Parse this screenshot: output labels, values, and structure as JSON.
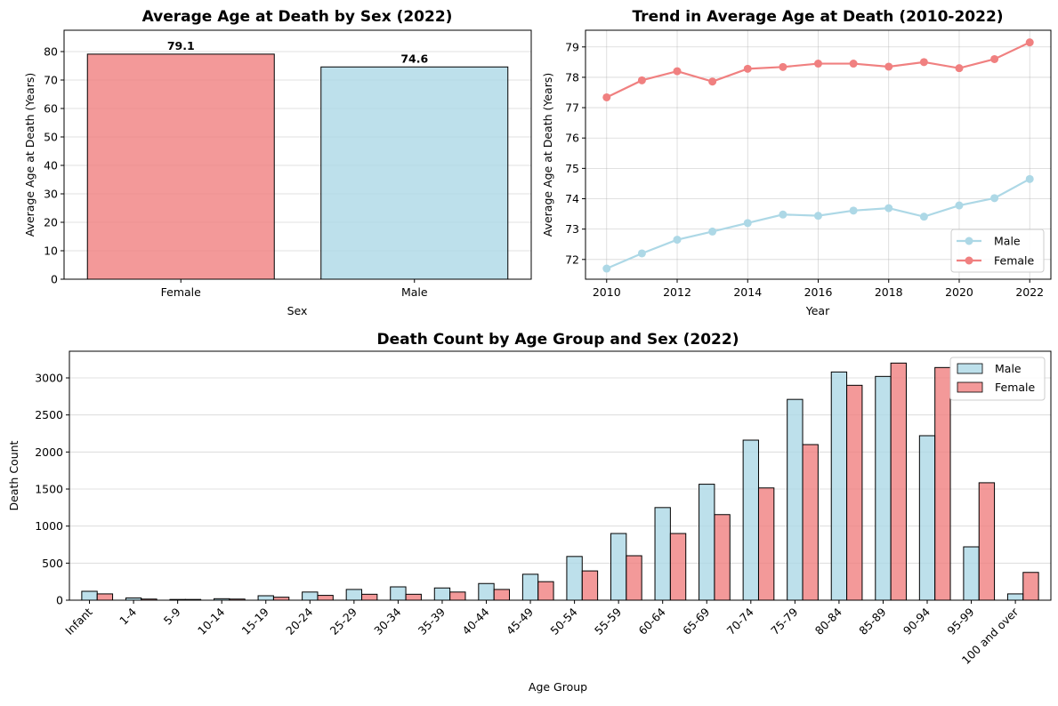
{
  "chart_data": [
    {
      "type": "bar",
      "title": "Average Age at Death by Sex (2022)",
      "xlabel": "Sex",
      "ylabel": "Average Age at Death (Years)",
      "categories": [
        "Female",
        "Male"
      ],
      "values": [
        79.1,
        74.6
      ],
      "value_labels": [
        "79.1",
        "74.6"
      ],
      "colors": [
        "#f08080",
        "#add8e6"
      ],
      "ylim": [
        0,
        87.5
      ],
      "yticks": [
        0,
        10,
        20,
        30,
        40,
        50,
        60,
        70,
        80
      ],
      "grid": "y"
    },
    {
      "type": "line",
      "title": "Trend in Average Age at Death (2010-2022)",
      "xlabel": "Year",
      "ylabel": "Average Age at Death (Years)",
      "x": [
        2010,
        2011,
        2012,
        2013,
        2014,
        2015,
        2016,
        2017,
        2018,
        2019,
        2020,
        2021,
        2022
      ],
      "xlim": [
        2009.4,
        2022.6
      ],
      "xticks": [
        2010,
        2012,
        2014,
        2016,
        2018,
        2020,
        2022
      ],
      "ylim": [
        71.35,
        79.55
      ],
      "yticks": [
        72,
        73,
        74,
        75,
        76,
        77,
        78,
        79
      ],
      "grid": "both",
      "legend_position": "lower-right",
      "series": [
        {
          "name": "Male",
          "color": "#add8e6",
          "values": [
            71.7,
            72.2,
            72.65,
            72.92,
            73.2,
            73.48,
            73.44,
            73.61,
            73.69,
            73.41,
            73.78,
            74.02,
            74.65
          ]
        },
        {
          "name": "Female",
          "color": "#f08080",
          "values": [
            77.34,
            77.9,
            78.2,
            77.86,
            78.28,
            78.34,
            78.45,
            78.45,
            78.35,
            78.5,
            78.3,
            78.6,
            79.15
          ]
        }
      ]
    },
    {
      "type": "bar",
      "title": "Death Count by Age Group and Sex (2022)",
      "xlabel": "Age Group",
      "ylabel": "Death Count",
      "categories": [
        "Infant",
        "1-4",
        "5-9",
        "10-14",
        "15-19",
        "20-24",
        "25-29",
        "30-34",
        "35-39",
        "40-44",
        "45-49",
        "50-54",
        "55-59",
        "60-64",
        "65-69",
        "70-74",
        "75-79",
        "80-84",
        "85-89",
        "90-94",
        "95-99",
        "100 and over"
      ],
      "ylim": [
        0,
        3360
      ],
      "yticks": [
        0,
        500,
        1000,
        1500,
        2000,
        2500,
        3000
      ],
      "grid": "y",
      "legend_position": "top-right",
      "series": [
        {
          "name": "Male",
          "color": "#add8e6",
          "values": [
            120,
            30,
            10,
            20,
            60,
            110,
            145,
            180,
            165,
            225,
            350,
            590,
            900,
            1250,
            1565,
            2160,
            2710,
            3080,
            3020,
            2220,
            720,
            85
          ]
        },
        {
          "name": "Female",
          "color": "#f08080",
          "values": [
            85,
            15,
            10,
            15,
            40,
            65,
            80,
            80,
            110,
            145,
            250,
            395,
            600,
            900,
            1155,
            1515,
            2100,
            2900,
            3200,
            3140,
            1585,
            375
          ]
        }
      ]
    }
  ]
}
